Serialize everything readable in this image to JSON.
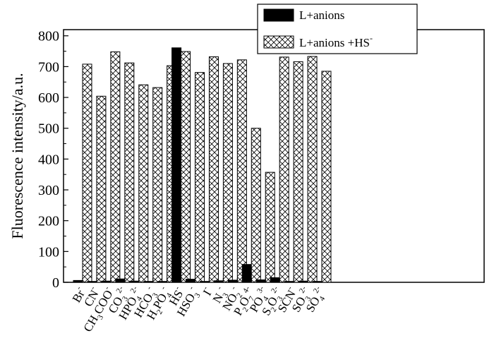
{
  "chart_data": {
    "type": "bar",
    "ylabel": "Fluorescence intensity/a.u.",
    "ylim": [
      0,
      820
    ],
    "yticks": [
      0,
      100,
      200,
      300,
      400,
      500,
      600,
      700,
      800
    ],
    "grid": false,
    "legend_position": "top-right",
    "categories": [
      {
        "id": "br",
        "parts": [
          [
            "Br",
            ""
          ],
          [
            "-",
            "sup"
          ]
        ]
      },
      {
        "id": "cn",
        "parts": [
          [
            "CN",
            ""
          ],
          [
            "-",
            "sup"
          ]
        ]
      },
      {
        "id": "ch3coo",
        "parts": [
          [
            "CH",
            ""
          ],
          [
            "3",
            "sub"
          ],
          [
            "COO",
            ""
          ],
          [
            "-",
            "sup"
          ]
        ]
      },
      {
        "id": "co3",
        "parts": [
          [
            "CO",
            ""
          ],
          [
            "3",
            "sub"
          ],
          [
            "2-",
            "sup"
          ]
        ]
      },
      {
        "id": "hpo4",
        "parts": [
          [
            "HPO",
            ""
          ],
          [
            "4",
            "sub"
          ],
          [
            "2-",
            "sup"
          ]
        ]
      },
      {
        "id": "hco3",
        "parts": [
          [
            "HCO",
            ""
          ],
          [
            "3",
            "sub"
          ],
          [
            "-",
            "sup"
          ]
        ]
      },
      {
        "id": "h2po4",
        "parts": [
          [
            "H",
            ""
          ],
          [
            "2",
            "sub"
          ],
          [
            "PO",
            ""
          ],
          [
            "4",
            "sub"
          ],
          [
            "-",
            "sup"
          ]
        ]
      },
      {
        "id": "hs",
        "parts": [
          [
            "HS",
            ""
          ],
          [
            "-",
            "sup"
          ]
        ]
      },
      {
        "id": "hso3",
        "parts": [
          [
            "HSO",
            ""
          ],
          [
            "3",
            "sub"
          ],
          [
            "-",
            "sup"
          ]
        ]
      },
      {
        "id": "i",
        "parts": [
          [
            "I",
            ""
          ],
          [
            "-",
            "sup"
          ]
        ]
      },
      {
        "id": "n3",
        "parts": [
          [
            "N",
            ""
          ],
          [
            "3",
            "sub"
          ],
          [
            "-",
            "sup"
          ]
        ]
      },
      {
        "id": "no2",
        "parts": [
          [
            "NO",
            ""
          ],
          [
            "2",
            "sub"
          ],
          [
            "-",
            "sup"
          ]
        ]
      },
      {
        "id": "p2o7",
        "parts": [
          [
            "P",
            ""
          ],
          [
            "2",
            "sub"
          ],
          [
            "O",
            ""
          ],
          [
            "7",
            "sub"
          ],
          [
            "4-",
            "sup"
          ]
        ]
      },
      {
        "id": "po4",
        "parts": [
          [
            "PO",
            ""
          ],
          [
            "4",
            "sub"
          ],
          [
            "3-",
            "sup"
          ]
        ]
      },
      {
        "id": "s2o3",
        "parts": [
          [
            "S",
            ""
          ],
          [
            "2",
            "sub"
          ],
          [
            "O",
            ""
          ],
          [
            "3",
            "sub"
          ],
          [
            "2-",
            "sup"
          ]
        ]
      },
      {
        "id": "scn",
        "parts": [
          [
            "SCN",
            ""
          ],
          [
            "-",
            "sup"
          ]
        ]
      },
      {
        "id": "so3",
        "parts": [
          [
            "SO",
            ""
          ],
          [
            "3",
            "sub"
          ],
          [
            "2-",
            "sup"
          ]
        ]
      },
      {
        "id": "so4",
        "parts": [
          [
            "SO",
            ""
          ],
          [
            "4",
            "sub"
          ],
          [
            "2-",
            "sup"
          ]
        ]
      }
    ],
    "series": [
      {
        "name": "L+anions",
        "fill": "solid",
        "color": "#000000",
        "values": [
          6,
          3,
          4,
          11,
          4,
          3,
          3,
          761,
          10,
          3,
          5,
          7,
          58,
          8,
          15,
          3,
          4,
          3
        ]
      },
      {
        "name": "L+anions +HS",
        "name_sup": "-",
        "fill": "crosshatch",
        "color": "#000000",
        "values": [
          708,
          604,
          748,
          712,
          641,
          632,
          703,
          749,
          681,
          732,
          710,
          722,
          500,
          357,
          731,
          716,
          733,
          685
        ]
      }
    ]
  }
}
